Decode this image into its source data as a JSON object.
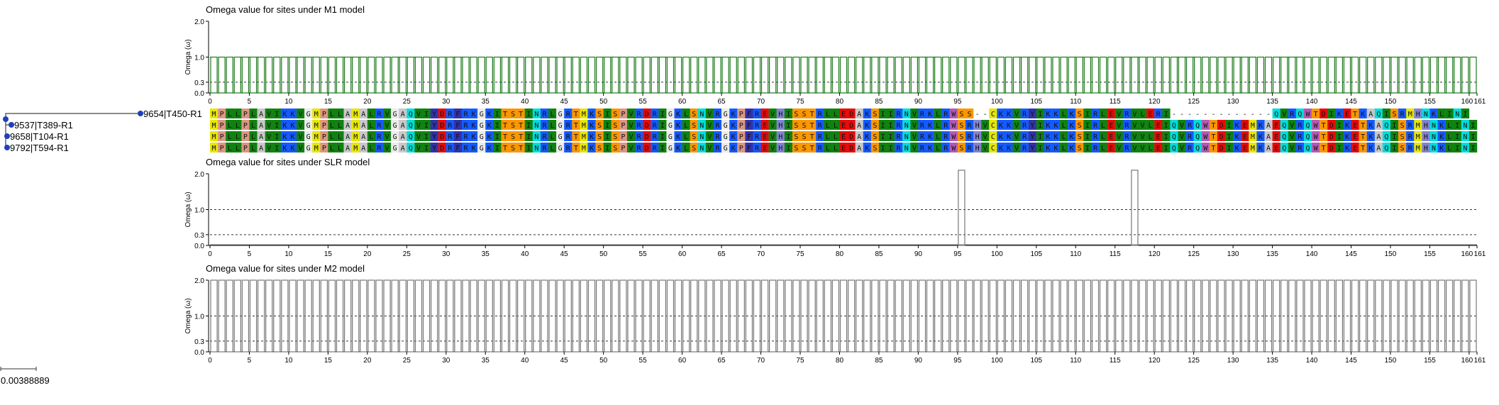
{
  "tree": {
    "leaves": [
      {
        "label": "9654|T450-R1"
      },
      {
        "label": "9537|T389-R1"
      },
      {
        "label": "9658|T104-R1"
      },
      {
        "label": "9792|T594-R1"
      }
    ],
    "scale_label": "0.00388889",
    "node_color": "#1f3fbf"
  },
  "alignment": {
    "length": 161,
    "sequences": [
      "MPLLPLAVIKKVGMPLLAMALRVGAQVIYDRFRKGKITSTINRLGRTMKSISPVRDRIGKLSNVRGKPFREVHISSTRLLEDAKSIIRNVRKLRWSS--CKKVRYIKKLKSIRLEVRVLERI-------------QVRQWTDIKETKAQISRMHNKLINI",
      "MPLLPLAVIKKVGMPLLAMALRVGAQVIYDRFRKGKITSTINRLGRTMKSISPVRDRIGKLSNVRGKPFREVHISSTRLLEDAKSIIRNVRKLRWSRHVCKKVRYIKKLKSIRLEVRVVLEIQVRQWTDIKEMKAEQVRQWTDIKETKAQISRMHNKLINI",
      "MPLLPLAVIKKVGMPLLAMALRVGAQVIYDRFRKGKITSTINRLGRTMKSISPVRDRIGKLSNVRGKPFREVHISSTRLLEDAKSIIRNVRKLRWSRHVCKKVRYIKKLKSIRLEVRVVLEIQVRQWTDIKEMKAEQVRQWTDIKETKAQISRMHNKLINI",
      "MPLLPLAVIKKVGMPLLAMALRVGAQVIYDRFRKGKITSTINRLGRTMKSISPVRDRIGKLSNVRGKPFREVHISSTRLLEDAKSIIRNVRKLRWSRHVCKKVRYIKKLKSIRLEVRVVLEIQVRQWTDIKEMKAEQVRQWTDIKETKAQISRMHNKLINI"
    ],
    "residue_colors": {
      "A": "#c8c8c8",
      "V": "#0f820f",
      "L": "#0f820f",
      "I": "#0f820f",
      "M": "#e6e600",
      "F": "#3232aa",
      "W": "#b45ab4",
      "Y": "#3232aa",
      "P": "#dc9682",
      "G": "#ebebeb",
      "S": "#fa9600",
      "T": "#fa9600",
      "C": "#e6e600",
      "N": "#00dcdc",
      "Q": "#00dcdc",
      "D": "#e60a0a",
      "E": "#e60a0a",
      "K": "#145aff",
      "R": "#145aff",
      "H": "#8282d2",
      "-": "#ffffff"
    }
  },
  "chart_data": [
    {
      "type": "bar",
      "title": "Omega value for sites under M1 model",
      "ylabel": "Omega (ω)",
      "yticks": [
        "0.0",
        "0.3",
        "1.0",
        "2.0"
      ],
      "ytick_values": [
        0,
        0.3,
        1.0,
        2.0
      ],
      "ylim": [
        0,
        2.0
      ],
      "reference_lines": [
        0.3,
        1.0
      ],
      "bar_color": "#1a7a1a",
      "x_ticks": [
        0,
        5,
        10,
        15,
        20,
        25,
        30,
        35,
        40,
        45,
        50,
        55,
        60,
        65,
        70,
        75,
        80,
        85,
        90,
        95,
        100,
        105,
        110,
        115,
        120,
        125,
        130,
        135,
        140,
        145,
        150,
        155,
        160,
        161
      ],
      "x": "sites 1-161",
      "values": {
        "default": 1.0,
        "gap_sites": [
          124,
          125,
          126,
          127,
          128,
          129,
          130,
          131,
          132,
          133,
          134,
          135,
          136
        ]
      }
    },
    {
      "type": "bar",
      "title": "Omega value for sites under SLR model",
      "ylabel": "Omega (ω)",
      "yticks": [
        "0.0",
        "0.3",
        "1.0",
        "2.0"
      ],
      "ytick_values": [
        0,
        0.3,
        1.0,
        2.0
      ],
      "ylim": [
        0,
        2.0
      ],
      "reference_lines": [
        0.3,
        1.0
      ],
      "bar_color": "#777777",
      "x_ticks": [
        0,
        5,
        10,
        15,
        20,
        25,
        30,
        35,
        40,
        45,
        50,
        55,
        60,
        65,
        70,
        75,
        80,
        85,
        90,
        95,
        100,
        105,
        110,
        115,
        120,
        125,
        130,
        135,
        140,
        145,
        150,
        155,
        160,
        161
      ],
      "x": "sites 1-161",
      "values": {
        "default": 0.0,
        "peaks": [
          {
            "site": 96,
            "omega": 2.1
          },
          {
            "site": 118,
            "omega": 2.1
          }
        ]
      }
    },
    {
      "type": "bar",
      "title": "Omega value for sites under M2 model",
      "ylabel": "Omega (ω)",
      "yticks": [
        "0.0",
        "0.3",
        "1.0",
        "2.0"
      ],
      "ytick_values": [
        0,
        0.3,
        1.0,
        2.0
      ],
      "ylim": [
        0,
        2.0
      ],
      "reference_lines": [
        0.3,
        1.0
      ],
      "bar_color": "#777777",
      "x_ticks": [
        0,
        5,
        10,
        15,
        20,
        25,
        30,
        35,
        40,
        45,
        50,
        55,
        60,
        65,
        70,
        75,
        80,
        85,
        90,
        95,
        100,
        105,
        110,
        115,
        120,
        125,
        130,
        135,
        140,
        145,
        150,
        155,
        160,
        161
      ],
      "x": "sites 1-161",
      "values": {
        "default": 2.0
      }
    }
  ]
}
